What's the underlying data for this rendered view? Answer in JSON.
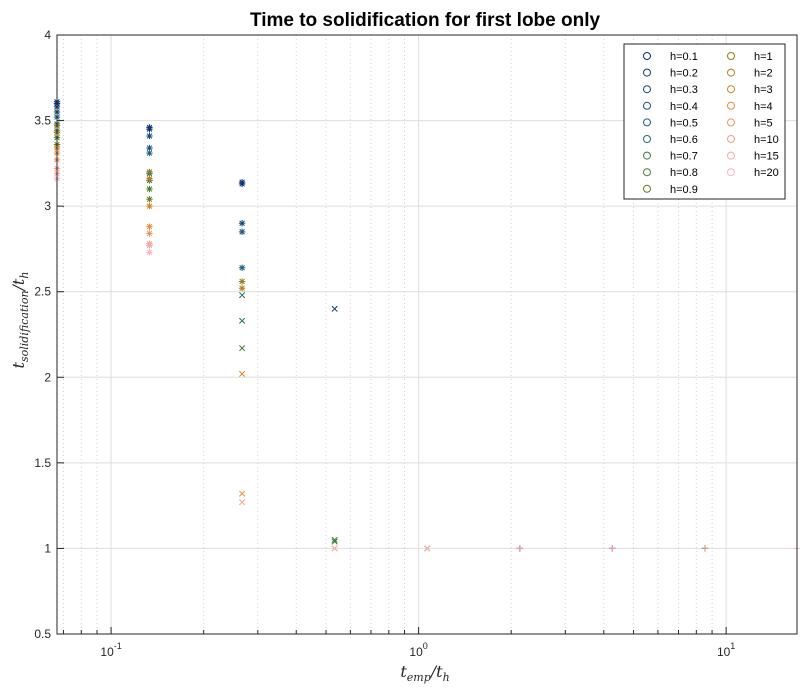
{
  "chart_data": {
    "type": "scatter",
    "title": "Time to solidification for first lobe only",
    "xlabel": {
      "main": "t",
      "sub": "emp",
      "tail": "/t",
      "tailsub": "h"
    },
    "ylabel": {
      "main": "t",
      "sub": "solidification",
      "tail": "/t",
      "tailsub": "h"
    },
    "xscale": "log",
    "xlim": [
      0.0667,
      17.0
    ],
    "ylim": [
      0.5,
      4
    ],
    "yticks": [
      "0.5",
      "1",
      "1.5",
      "2",
      "2.5",
      "3",
      "3.5",
      "4"
    ],
    "xticks": [
      {
        "value": 0.1,
        "base": "10",
        "exp": "-1"
      },
      {
        "value": 1,
        "base": "10",
        "exp": "0"
      },
      {
        "value": 10,
        "base": "10",
        "exp": "1"
      }
    ],
    "grid": true,
    "legend_position": "top-right",
    "series": [
      {
        "name": "h=0.1",
        "color": "#0b2a6f"
      },
      {
        "name": "h=0.2",
        "color": "#0e3878"
      },
      {
        "name": "h=0.3",
        "color": "#144683"
      },
      {
        "name": "h=0.4",
        "color": "#1a5384"
      },
      {
        "name": "h=0.5",
        "color": "#1f6080"
      },
      {
        "name": "h=0.6",
        "color": "#246c68"
      },
      {
        "name": "h=0.7",
        "color": "#2f7745"
      },
      {
        "name": "h=0.8",
        "color": "#4c7d2c"
      },
      {
        "name": "h=0.9",
        "color": "#6a7d20"
      },
      {
        "name": "h=1",
        "color": "#927c1c"
      },
      {
        "name": "h=2",
        "color": "#b2801e"
      },
      {
        "name": "h=3",
        "color": "#cf8626"
      },
      {
        "name": "h=4",
        "color": "#e38f3c"
      },
      {
        "name": "h=5",
        "color": "#ee9461"
      },
      {
        "name": "h=10",
        "color": "#f49e86"
      },
      {
        "name": "h=15",
        "color": "#f8a6a6"
      },
      {
        "name": "h=20",
        "color": "#fbb3c4"
      }
    ],
    "points": [
      {
        "x": 0.0667,
        "y": 3.6,
        "s": 0,
        "m": "*"
      },
      {
        "x": 0.0667,
        "y": 3.61,
        "s": 1,
        "m": "*"
      },
      {
        "x": 0.0667,
        "y": 3.58,
        "s": 2,
        "m": "*"
      },
      {
        "x": 0.0667,
        "y": 3.55,
        "s": 3,
        "m": "*"
      },
      {
        "x": 0.0667,
        "y": 3.52,
        "s": 4,
        "m": "*"
      },
      {
        "x": 0.0667,
        "y": 3.48,
        "s": 5,
        "m": "*"
      },
      {
        "x": 0.0667,
        "y": 3.44,
        "s": 6,
        "m": "*"
      },
      {
        "x": 0.0667,
        "y": 3.4,
        "s": 7,
        "m": "*"
      },
      {
        "x": 0.0667,
        "y": 3.36,
        "s": 8,
        "m": "*"
      },
      {
        "x": 0.0667,
        "y": 3.47,
        "s": 9,
        "m": "*"
      },
      {
        "x": 0.0667,
        "y": 3.43,
        "s": 10,
        "m": "*"
      },
      {
        "x": 0.0667,
        "y": 3.34,
        "s": 11,
        "m": "*"
      },
      {
        "x": 0.0667,
        "y": 3.31,
        "s": 12,
        "m": "*"
      },
      {
        "x": 0.0667,
        "y": 3.27,
        "s": 13,
        "m": "*"
      },
      {
        "x": 0.0667,
        "y": 3.22,
        "s": 14,
        "m": "*"
      },
      {
        "x": 0.0667,
        "y": 3.19,
        "s": 15,
        "m": "*"
      },
      {
        "x": 0.0667,
        "y": 3.16,
        "s": 16,
        "m": "*"
      },
      {
        "x": 0.1333,
        "y": 3.45,
        "s": 0,
        "m": "*"
      },
      {
        "x": 0.1333,
        "y": 3.46,
        "s": 1,
        "m": "*"
      },
      {
        "x": 0.1333,
        "y": 3.41,
        "s": 2,
        "m": "*"
      },
      {
        "x": 0.1333,
        "y": 3.34,
        "s": 3,
        "m": "*"
      },
      {
        "x": 0.1333,
        "y": 3.31,
        "s": 4,
        "m": "*"
      },
      {
        "x": 0.1333,
        "y": 3.19,
        "s": 5,
        "m": "*"
      },
      {
        "x": 0.1333,
        "y": 3.15,
        "s": 6,
        "m": "*"
      },
      {
        "x": 0.1333,
        "y": 3.1,
        "s": 7,
        "m": "*"
      },
      {
        "x": 0.1333,
        "y": 3.04,
        "s": 8,
        "m": "*"
      },
      {
        "x": 0.1333,
        "y": 3.2,
        "s": 9,
        "m": "*"
      },
      {
        "x": 0.1333,
        "y": 3.16,
        "s": 10,
        "m": "*"
      },
      {
        "x": 0.1333,
        "y": 3.0,
        "s": 11,
        "m": "*"
      },
      {
        "x": 0.1333,
        "y": 2.88,
        "s": 12,
        "m": "*"
      },
      {
        "x": 0.1333,
        "y": 2.84,
        "s": 13,
        "m": "*"
      },
      {
        "x": 0.1333,
        "y": 2.78,
        "s": 14,
        "m": "*"
      },
      {
        "x": 0.1333,
        "y": 2.77,
        "s": 15,
        "m": "*"
      },
      {
        "x": 0.1333,
        "y": 2.73,
        "s": 16,
        "m": "*"
      },
      {
        "x": 0.2667,
        "y": 3.13,
        "s": 0,
        "m": "*"
      },
      {
        "x": 0.2667,
        "y": 3.14,
        "s": 1,
        "m": "*"
      },
      {
        "x": 0.2667,
        "y": 2.9,
        "s": 2,
        "m": "*"
      },
      {
        "x": 0.2667,
        "y": 2.85,
        "s": 3,
        "m": "*"
      },
      {
        "x": 0.2667,
        "y": 2.64,
        "s": 4,
        "m": "*"
      },
      {
        "x": 0.2667,
        "y": 2.48,
        "s": 5,
        "m": "x"
      },
      {
        "x": 0.2667,
        "y": 2.33,
        "s": 6,
        "m": "x"
      },
      {
        "x": 0.2667,
        "y": 2.17,
        "s": 7,
        "m": "x"
      },
      {
        "x": 0.2667,
        "y": 2.56,
        "s": 9,
        "m": "*"
      },
      {
        "x": 0.2667,
        "y": 2.52,
        "s": 10,
        "m": "*"
      },
      {
        "x": 0.2667,
        "y": 2.02,
        "s": 11,
        "m": "x"
      },
      {
        "x": 0.2667,
        "y": 1.32,
        "s": 12,
        "m": "x"
      },
      {
        "x": 0.2667,
        "y": 1.27,
        "s": 14,
        "m": "x"
      },
      {
        "x": 0.5333,
        "y": 2.4,
        "s": 1,
        "m": "x"
      },
      {
        "x": 0.5333,
        "y": 1.05,
        "s": 7,
        "m": "x"
      },
      {
        "x": 0.5333,
        "y": 1.04,
        "s": 6,
        "m": "x"
      },
      {
        "x": 0.5333,
        "y": 1.0,
        "s": 12,
        "m": "x"
      },
      {
        "x": 0.5333,
        "y": 1.0,
        "s": 15,
        "m": "x"
      },
      {
        "x": 1.067,
        "y": 1.0,
        "s": 6,
        "m": "x"
      },
      {
        "x": 1.067,
        "y": 1.0,
        "s": 10,
        "m": "x"
      },
      {
        "x": 1.067,
        "y": 1.0,
        "s": 16,
        "m": "x"
      },
      {
        "x": 2.133,
        "y": 1.0,
        "s": 0,
        "m": "+"
      },
      {
        "x": 2.133,
        "y": 1.0,
        "s": 15,
        "m": "+"
      },
      {
        "x": 4.267,
        "y": 1.0,
        "s": 0,
        "m": "+"
      },
      {
        "x": 4.267,
        "y": 1.0,
        "s": 15,
        "m": "+"
      },
      {
        "x": 8.533,
        "y": 1.0,
        "s": 0,
        "m": "+"
      },
      {
        "x": 8.533,
        "y": 1.0,
        "s": 14,
        "m": "+"
      },
      {
        "x": 17.0,
        "y": 1.0,
        "s": 16,
        "m": "+"
      }
    ]
  }
}
